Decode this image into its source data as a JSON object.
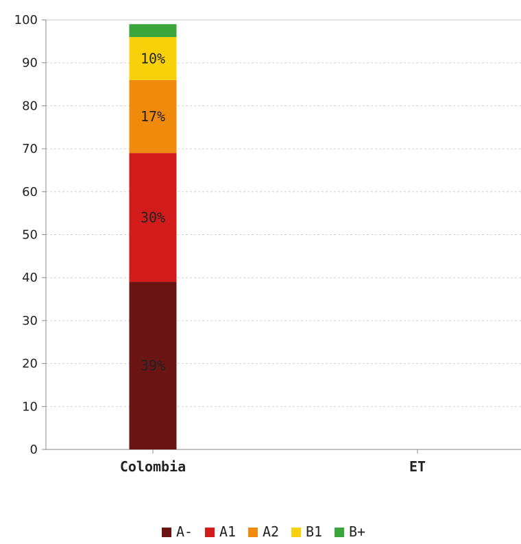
{
  "chart_data": {
    "type": "bar",
    "stacked": true,
    "categories": [
      "Colombia",
      "ET"
    ],
    "ylim": [
      0,
      100
    ],
    "yticks": [
      0,
      10,
      20,
      30,
      40,
      50,
      60,
      70,
      80,
      90,
      100
    ],
    "grid": true,
    "legend_position": "bottom",
    "series": [
      {
        "name": "A-",
        "color": "#6b1414",
        "values": [
          39,
          0
        ],
        "labels": [
          "39%",
          ""
        ]
      },
      {
        "name": "A1",
        "color": "#d21c1c",
        "values": [
          30,
          0
        ],
        "labels": [
          "30%",
          ""
        ]
      },
      {
        "name": "A2",
        "color": "#f08a0c",
        "values": [
          17,
          0
        ],
        "labels": [
          "17%",
          ""
        ]
      },
      {
        "name": "B1",
        "color": "#f8d10a",
        "values": [
          10,
          0
        ],
        "labels": [
          "10%",
          ""
        ]
      },
      {
        "name": "B+",
        "color": "#3aa53a",
        "values": [
          3,
          0
        ],
        "labels": [
          "",
          ""
        ]
      }
    ]
  }
}
